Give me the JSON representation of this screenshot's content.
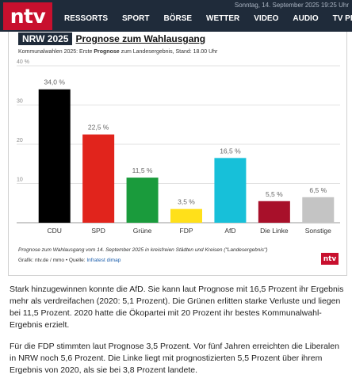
{
  "header": {
    "logo_text": "ntv",
    "date_text": "Sonntag, 14. September 2025 19:25 Uhr",
    "nav": [
      "RESSORTS",
      "SPORT",
      "BÖRSE",
      "WETTER",
      "VIDEO",
      "AUDIO",
      "TV PR"
    ]
  },
  "chart_card": {
    "title_badge": "NRW 2025",
    "title": "Prognose zum Wahlausgang",
    "subtitle_pre": "Kommunalwahlen 2025: Erste ",
    "subtitle_bold": "Prognose",
    "subtitle_post": " zum Landesergebnis, Stand: 18.00 Uhr",
    "note": "Prognose zum Wahlausgang vom 14. September 2025 in kreisfreien Städten und Kreisen (\"Landesergebnis\")",
    "credit_text": "Grafik: ntv.de / mmo • Quelle: ",
    "credit_source": "Infratest dimap",
    "logo_text": "ntv"
  },
  "chart_data": {
    "type": "bar",
    "categories": [
      "CDU",
      "SPD",
      "Grüne",
      "FDP",
      "AfD",
      "Die Linke",
      "Sonstige"
    ],
    "values": [
      34.0,
      22.5,
      11.5,
      3.5,
      16.5,
      5.5,
      6.5
    ],
    "value_labels": [
      "34,0 %",
      "22,5 %",
      "11,5 %",
      "3,5 %",
      "16,5 %",
      "5,5 %",
      "6,5 %"
    ],
    "colors": [
      "#000000",
      "#e1241c",
      "#1a9b3c",
      "#ffe01a",
      "#17c0d9",
      "#a8102a",
      "#c4c4c4"
    ],
    "ylim": [
      0,
      40
    ],
    "yticks": [
      0,
      10,
      20,
      30,
      40
    ],
    "ytick_labels": [
      "",
      "10",
      "20",
      "30",
      "40 %"
    ],
    "grid": true
  },
  "article": {
    "paragraphs": [
      "Stark hinzugewinnen konnte die AfD. Sie kann laut Prognose mit 16,5 Prozent ihr Ergebnis mehr als verdreifachen (2020: 5,1 Prozent). Die Grünen erlitten starke Verluste und liegen bei 11,5 Prozent. 2020 hatte die Ökopartei mit 20 Prozent ihr bestes Kommunalwahl-Ergebnis erzielt.",
      "Für die FDP stimmten laut Prognose 3,5 Prozent. Vor fünf Jahren erreichten die Liberalen in NRW noch 5,6 Prozent. Die Linke liegt mit prognostizierten 5,5 Prozent über ihrem Ergebnis von 2020, als sie bei 3,8 Prozent landete."
    ]
  }
}
